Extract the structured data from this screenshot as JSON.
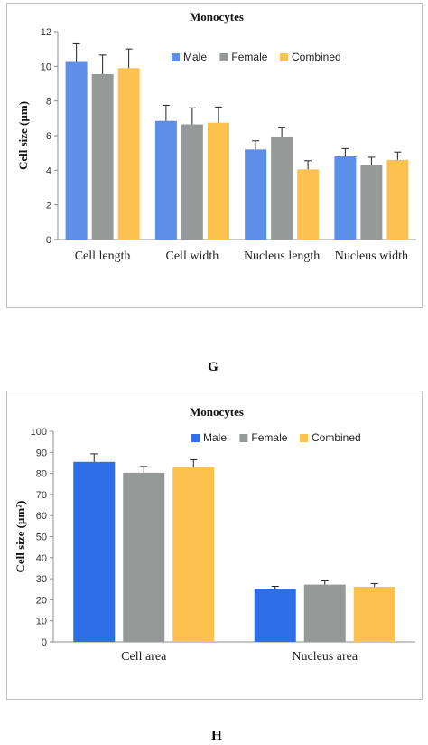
{
  "chart_data": [
    {
      "type": "bar",
      "title": "Monocytes",
      "ylabel": "Cell size (µm)",
      "xlabel": "",
      "ylim": [
        0,
        12
      ],
      "yticks": [
        0,
        2,
        4,
        6,
        8,
        10,
        12
      ],
      "categories": [
        "Cell length",
        "Cell width",
        "Nucleus length",
        "Nucleus width"
      ],
      "series": [
        {
          "name": "Male",
          "color": "#5b8fe8",
          "values": [
            10.25,
            6.85,
            5.2,
            4.8
          ],
          "errors": [
            1.05,
            0.9,
            0.5,
            0.45
          ]
        },
        {
          "name": "Female",
          "color": "#959a98",
          "values": [
            9.55,
            6.65,
            5.9,
            4.3
          ],
          "errors": [
            1.1,
            0.95,
            0.55,
            0.45
          ]
        },
        {
          "name": "Combined",
          "color": "#fdc24e",
          "values": [
            9.9,
            6.75,
            4.05,
            4.6
          ],
          "errors": [
            1.1,
            0.9,
            0.5,
            0.45
          ]
        }
      ],
      "legend": "top-right",
      "grid": false
    },
    {
      "type": "bar",
      "title": "Monocytes",
      "ylabel": "Cell size (µm²)",
      "xlabel": "",
      "ylim": [
        0,
        100
      ],
      "yticks": [
        0,
        10,
        20,
        30,
        40,
        50,
        60,
        70,
        80,
        90,
        100
      ],
      "categories": [
        "Cell area",
        "Nucleus area"
      ],
      "series": [
        {
          "name": "Male",
          "color": "#2e6fe8",
          "values": [
            85.5,
            25.2
          ],
          "errors": [
            3.8,
            1.2
          ]
        },
        {
          "name": "Female",
          "color": "#959a98",
          "values": [
            80.3,
            27.2
          ],
          "errors": [
            3.0,
            1.8
          ]
        },
        {
          "name": "Combined",
          "color": "#fdc24e",
          "values": [
            83.0,
            26.2
          ],
          "errors": [
            3.5,
            1.5
          ]
        }
      ],
      "legend": "top-right",
      "grid": false
    }
  ],
  "panel_labels": {
    "first": "G",
    "second": "H"
  }
}
